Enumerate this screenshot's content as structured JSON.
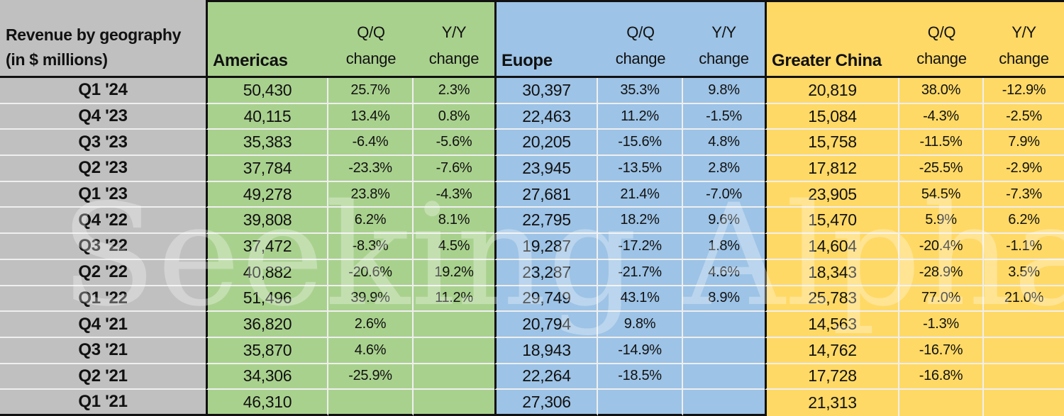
{
  "header": {
    "title_line1": "Revenue by geography",
    "title_line2": "(in $ millions)",
    "qq_label": "Q/Q",
    "yy_label": "Y/Y",
    "change_label": "change"
  },
  "colors": {
    "label_bg": "#C0C0C0",
    "americas": "#A9D18E",
    "europe": "#9DC3E6",
    "greater_china": "#FFD966",
    "gridline": "#EFEFEF",
    "section_border": "#111111"
  },
  "watermark": "Seeking Alpha",
  "chart_data": {
    "type": "table",
    "title": "Revenue by geography (in $ millions)",
    "categories": [
      "Q1 '24",
      "Q4 '23",
      "Q3 '23",
      "Q2 '23",
      "Q1 '23",
      "Q4 '22",
      "Q3 '22",
      "Q2 '22",
      "Q1 '22",
      "Q4 '21",
      "Q3 '21",
      "Q2 '21",
      "Q1 '21"
    ],
    "column_headers_per_section": [
      "Q/Q change",
      "Y/Y change"
    ],
    "sections": [
      {
        "name": "Americas",
        "values": [
          "50,430",
          "40,115",
          "35,383",
          "37,784",
          "49,278",
          "39,808",
          "37,472",
          "40,882",
          "51,496",
          "36,820",
          "35,870",
          "34,306",
          "46,310"
        ],
        "qq_change": [
          "25.7%",
          "13.4%",
          "-6.4%",
          "-23.3%",
          "23.8%",
          "6.2%",
          "-8.3%",
          "-20.6%",
          "39.9%",
          "2.6%",
          "4.6%",
          "-25.9%",
          ""
        ],
        "yy_change": [
          "2.3%",
          "0.8%",
          "-5.6%",
          "-7.6%",
          "-4.3%",
          "8.1%",
          "4.5%",
          "19.2%",
          "11.2%",
          "",
          "",
          "",
          ""
        ]
      },
      {
        "name": "Euope",
        "values": [
          "30,397",
          "22,463",
          "20,205",
          "23,945",
          "27,681",
          "22,795",
          "19,287",
          "23,287",
          "29,749",
          "20,794",
          "18,943",
          "22,264",
          "27,306"
        ],
        "qq_change": [
          "35.3%",
          "11.2%",
          "-15.6%",
          "-13.5%",
          "21.4%",
          "18.2%",
          "-17.2%",
          "-21.7%",
          "43.1%",
          "9.8%",
          "-14.9%",
          "-18.5%",
          ""
        ],
        "yy_change": [
          "9.8%",
          "-1.5%",
          "4.8%",
          "2.8%",
          "-7.0%",
          "9.6%",
          "1.8%",
          "4.6%",
          "8.9%",
          "",
          "",
          "",
          ""
        ]
      },
      {
        "name": "Greater China",
        "values": [
          "20,819",
          "15,084",
          "15,758",
          "17,812",
          "23,905",
          "15,470",
          "14,604",
          "18,343",
          "25,783",
          "14,563",
          "14,762",
          "17,728",
          "21,313"
        ],
        "qq_change": [
          "38.0%",
          "-4.3%",
          "-11.5%",
          "-25.5%",
          "54.5%",
          "5.9%",
          "-20.4%",
          "-28.9%",
          "77.0%",
          "-1.3%",
          "-16.7%",
          "-16.8%",
          ""
        ],
        "yy_change": [
          "-12.9%",
          "-2.5%",
          "7.9%",
          "-2.9%",
          "-7.3%",
          "6.2%",
          "-1.1%",
          "3.5%",
          "21.0%",
          "",
          "",
          "",
          ""
        ]
      }
    ]
  }
}
